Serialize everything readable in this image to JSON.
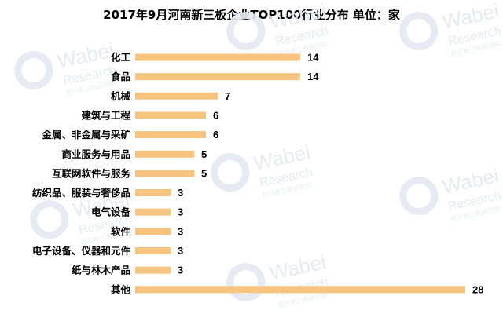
{
  "chart_data": {
    "type": "bar",
    "orientation": "horizontal",
    "title": "2017年9月河南新三板企业TOP100行业分布 单位：家",
    "categories": [
      "化工",
      "食品",
      "机械",
      "建筑与工程",
      "金属、非金属与采矿",
      "商业服务与用品",
      "互联网软件与服务",
      "纺织品、服装与奢侈品",
      "电气设备",
      "软件",
      "电子设备、仪器和元件",
      "纸与林木产品",
      "其他"
    ],
    "values": [
      14,
      14,
      7,
      6,
      6,
      5,
      5,
      3,
      3,
      3,
      3,
      3,
      28
    ],
    "xlabel": "",
    "ylabel": "",
    "xlim": [
      0,
      28
    ],
    "grid": false,
    "legend": "none",
    "data_labels": true,
    "bar_color": "#F6C47F",
    "colors": {
      "bar": "#F6C47F",
      "text": "#000000",
      "watermark": "#E4E9F2"
    }
  },
  "watermark": {
    "logo_text": "Wabei",
    "sub_text": "Research",
    "tagline": "挖贝新三板研究院"
  }
}
